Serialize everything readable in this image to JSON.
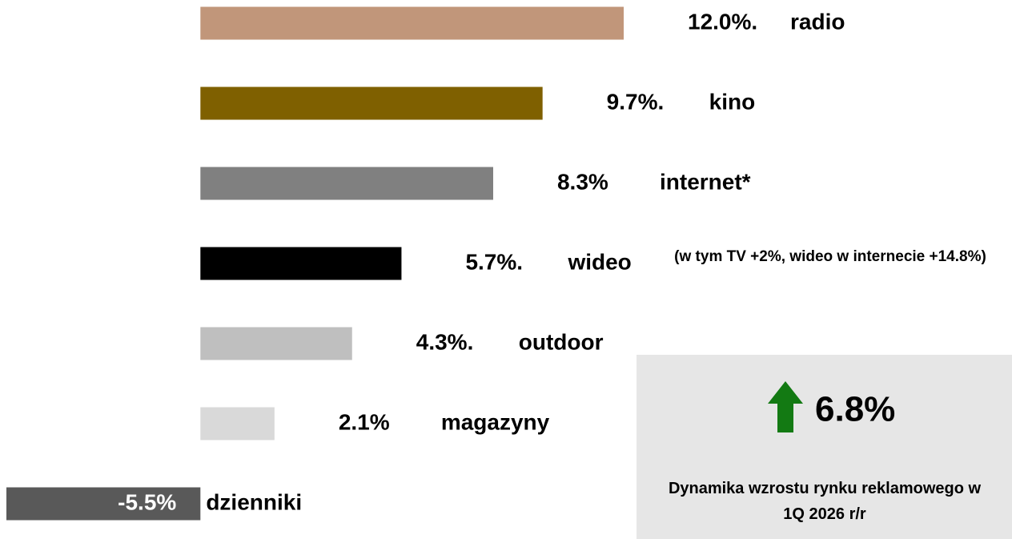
{
  "chart_data": {
    "type": "hbar",
    "categories": [
      "radio",
      "kino",
      "internet*",
      "wideo",
      "outdoor",
      "magazyny",
      "dzienniki"
    ],
    "values": [
      12.0,
      9.7,
      8.3,
      5.7,
      4.3,
      2.1,
      -5.5
    ],
    "value_labels": [
      "12.0%.",
      "9.7%.",
      "8.3%",
      "5.7%.",
      "4.3%.",
      "2.1%",
      "-5.5%"
    ],
    "colors": [
      "#c1967a",
      "#7f6000",
      "#808080",
      "#000000",
      "#bfbfbf",
      "#d9d9d9",
      "#595959"
    ],
    "annotation": "(w tym TV +2%, wideo w internecie +14.8%)",
    "highlight": {
      "label": "6.8%",
      "caption": "Dynamika wzrostu rynku reklamowego w 1Q 2026 r/r"
    }
  }
}
